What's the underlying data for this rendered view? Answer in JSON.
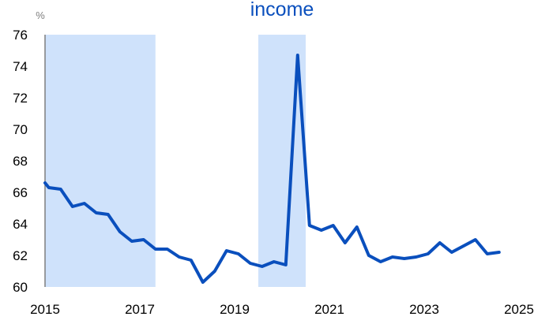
{
  "chart_data": {
    "type": "line",
    "title": "income",
    "ylabel": "%",
    "xlabel": "",
    "xlim": [
      2015,
      2025
    ],
    "ylim": [
      60,
      76
    ],
    "x_ticks": [
      "2015",
      "2017",
      "2019",
      "2021",
      "2023",
      "2025"
    ],
    "y_ticks": [
      "60",
      "62",
      "64",
      "66",
      "68",
      "70",
      "72",
      "74",
      "76"
    ],
    "grid": false,
    "legend": "none",
    "shaded_periods": [
      {
        "start": 2015.0,
        "end": 2017.33
      },
      {
        "start": 2019.5,
        "end": 2020.5
      }
    ],
    "series": [
      {
        "x": [
          2015.0,
          2015.08,
          2015.33,
          2015.58,
          2015.83,
          2016.08,
          2016.33,
          2016.58,
          2016.83,
          2017.08,
          2017.33,
          2017.58,
          2017.83,
          2018.08,
          2018.33,
          2018.58,
          2018.83,
          2019.08,
          2019.33,
          2019.58,
          2019.83,
          2020.08,
          2020.33,
          2020.58,
          2020.83,
          2021.08,
          2021.33,
          2021.58,
          2021.83,
          2022.08,
          2022.33,
          2022.58,
          2022.83,
          2023.08,
          2023.33,
          2023.58,
          2023.83,
          2024.08,
          2024.33,
          2024.58
        ],
        "values": [
          66.6,
          66.3,
          66.2,
          65.1,
          65.3,
          64.7,
          64.6,
          63.5,
          62.9,
          63.0,
          62.4,
          62.4,
          61.9,
          61.7,
          60.3,
          61.0,
          62.3,
          62.1,
          61.5,
          61.3,
          61.6,
          61.4,
          74.7,
          63.9,
          63.6,
          63.9,
          62.8,
          63.8,
          62.0,
          61.6,
          61.9,
          61.8,
          61.9,
          62.1,
          62.8,
          62.2,
          62.6,
          63.0,
          62.1,
          62.2
        ]
      }
    ]
  },
  "colors": {
    "line": "#0a4fbd",
    "shade": "#cfe2fb",
    "title": "#0a4fbd",
    "axis": "#7f7f7f"
  }
}
